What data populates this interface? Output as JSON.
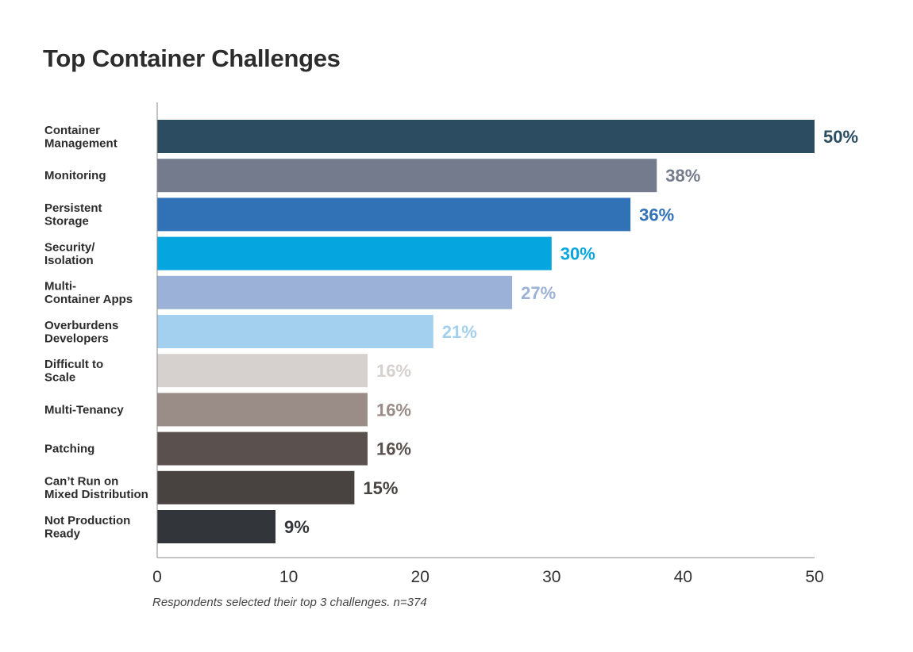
{
  "chart_data": {
    "type": "bar",
    "orientation": "horizontal",
    "title": "Top Container Challenges",
    "xlabel": "",
    "ylabel": "",
    "xlim": [
      0,
      50
    ],
    "x_ticks": [
      "0",
      "10",
      "20",
      "30",
      "40",
      "50"
    ],
    "grid": false,
    "legend": "none",
    "footnote": "Respondents selected their top 3 challenges. n=374",
    "bars": [
      {
        "label": [
          "Container",
          "Management"
        ],
        "value": 50,
        "value_label": "50%",
        "color": "#2b4c61"
      },
      {
        "label": [
          "Monitoring"
        ],
        "value": 38,
        "value_label": "38%",
        "color": "#747b8c"
      },
      {
        "label": [
          "Persistent",
          "Storage"
        ],
        "value": 36,
        "value_label": "36%",
        "color": "#3172b7"
      },
      {
        "label": [
          "Security/",
          "Isolation"
        ],
        "value": 30,
        "value_label": "30%",
        "color": "#05a6df"
      },
      {
        "label": [
          "Multi-",
          "Container Apps"
        ],
        "value": 27,
        "value_label": "27%",
        "color": "#9cb1d8"
      },
      {
        "label": [
          "Overburdens",
          "Developers"
        ],
        "value": 21,
        "value_label": "21%",
        "color": "#a2d0ee"
      },
      {
        "label": [
          "Difficult to",
          "Scale"
        ],
        "value": 16,
        "value_label": "16%",
        "color": "#d6d1cf"
      },
      {
        "label": [
          "Multi-Tenancy"
        ],
        "value": 16,
        "value_label": "16%",
        "color": "#9a8c86"
      },
      {
        "label": [
          "Patching"
        ],
        "value": 16,
        "value_label": "16%",
        "color": "#5a504d"
      },
      {
        "label": [
          "Can’t Run on",
          "Mixed Distribution"
        ],
        "value": 15,
        "value_label": "15%",
        "color": "#484241"
      },
      {
        "label": [
          "Not Production",
          "Ready"
        ],
        "value": 9,
        "value_label": "9%",
        "color": "#323539"
      }
    ]
  }
}
